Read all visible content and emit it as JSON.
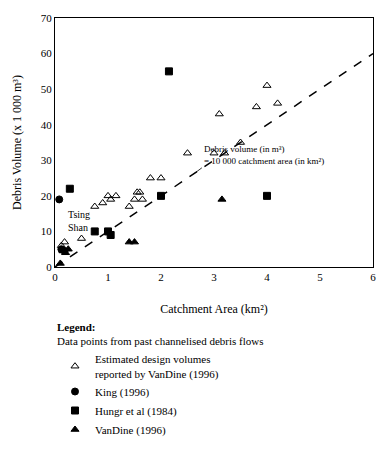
{
  "chart_data": {
    "type": "scatter",
    "xlabel": "Catchment Area (km²)",
    "ylabel": "Debris Volume (x 1 000 m³)",
    "xlim": [
      0,
      6
    ],
    "ylim": [
      0,
      70
    ],
    "xticks": [
      0,
      1,
      2,
      3,
      4,
      5,
      6
    ],
    "yticks": [
      0,
      10,
      20,
      30,
      40,
      50,
      60,
      70
    ],
    "grid": false,
    "legend": "bottom",
    "legend_title": "Legend:",
    "legend_subtitle": "Data points from past channelised debris flows",
    "series": [
      {
        "type": "line",
        "x": [
          0,
          6
        ],
        "values": [
          0,
          60
        ],
        "color": "black",
        "line_style": "dashed"
      },
      {
        "name": "Estimated design volumes\nreported by VanDine (1996)",
        "type": "scatter",
        "marker": "triangle-up-open",
        "color": "black",
        "x": [
          0.12,
          0.18,
          0.5,
          0.75,
          0.9,
          1.0,
          1.05,
          1.15,
          1.4,
          1.5,
          1.55,
          1.6,
          1.65,
          1.8,
          2.0,
          2.5,
          3.0,
          3.1,
          3.2,
          3.5,
          3.8,
          4.0,
          4.2
        ],
        "values": [
          6,
          7,
          8,
          17,
          18,
          20,
          19,
          20,
          17,
          19,
          21,
          21,
          19,
          25,
          25,
          32,
          32,
          43,
          32,
          35,
          45,
          51,
          46
        ]
      },
      {
        "name": "King (1996)",
        "type": "scatter",
        "marker": "circle",
        "color": "black",
        "x": [
          0.08,
          0.12,
          0.18
        ],
        "values": [
          19,
          5,
          4.5
        ]
      },
      {
        "name": "Hungr et al (1984)",
        "type": "scatter",
        "marker": "square",
        "color": "black",
        "x": [
          0.28,
          0.75,
          1.0,
          1.05,
          2.0,
          2.15,
          4.0
        ],
        "values": [
          22,
          10,
          10,
          9,
          20,
          55,
          20
        ]
      },
      {
        "name": "VanDine (1996)",
        "type": "scatter",
        "marker": "triangle-up",
        "color": "black",
        "x": [
          0.1,
          0.15,
          0.2,
          0.25,
          1.4,
          1.5,
          3.15
        ],
        "values": [
          1,
          4.5,
          4,
          5,
          7,
          7,
          19
        ]
      }
    ],
    "annotations": [
      {
        "text": "Debris volume (in m³)\n= 10 000 catchment area (in km²)",
        "x": 2.62,
        "y": 26.2,
        "arrow": true
      },
      {
        "text": "Tsing\nShan",
        "x": 0.21,
        "y": 17.0
      }
    ]
  }
}
